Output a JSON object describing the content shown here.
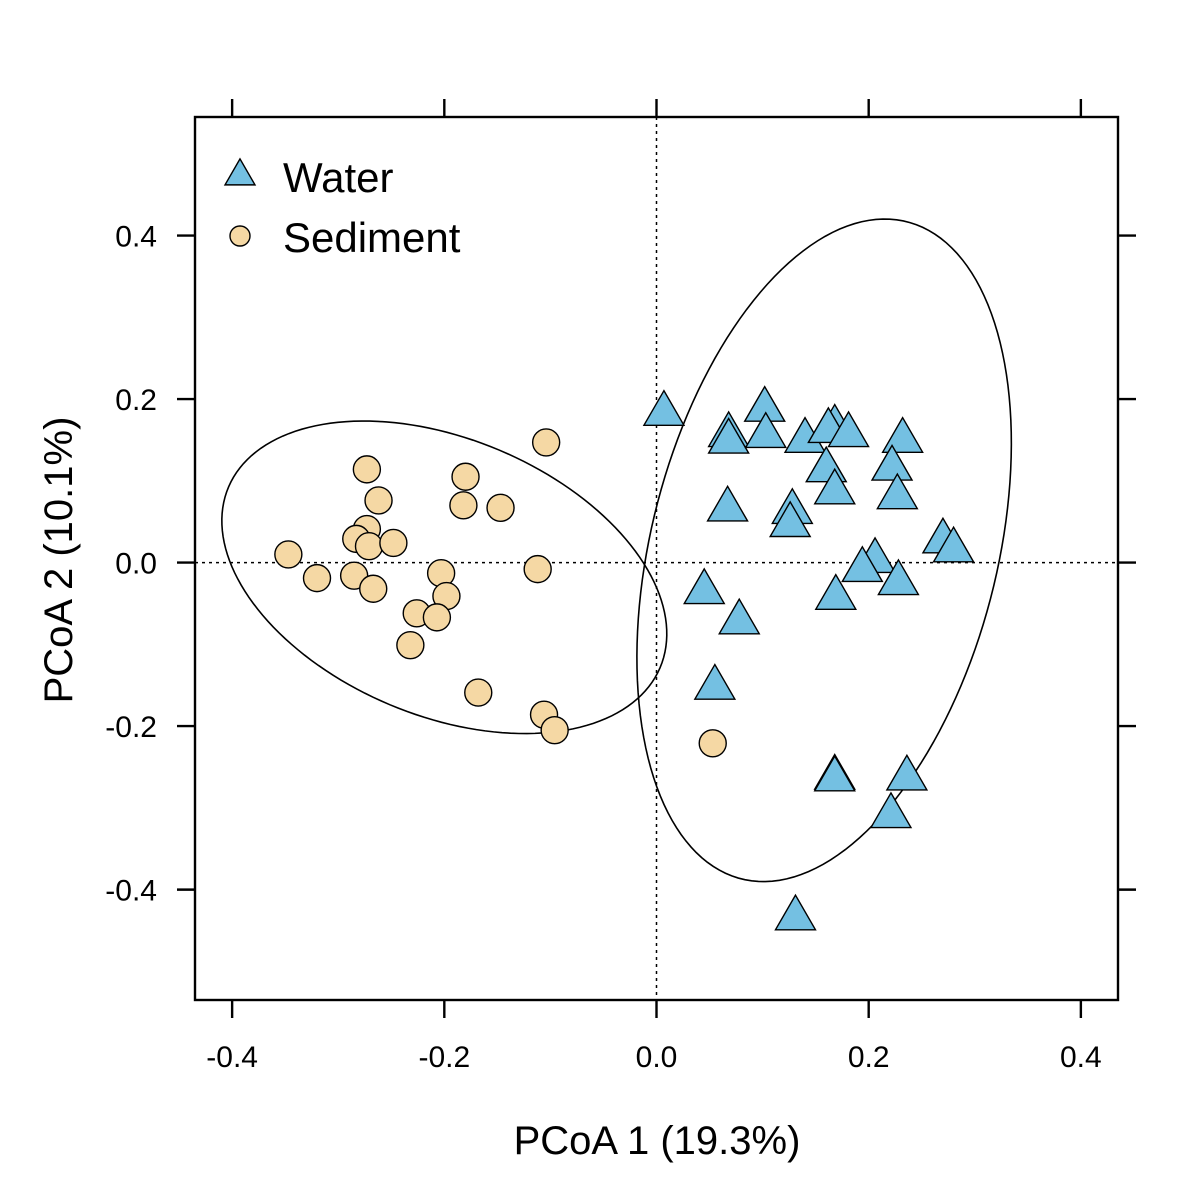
{
  "chart_data": {
    "type": "scatter",
    "xlabel": "PCoA 1 (19.3%)",
    "ylabel": "PCoA 2 (10.1%)",
    "xlim": [
      -0.435,
      0.435
    ],
    "ylim": [
      -0.535,
      0.545
    ],
    "xticks": [
      {
        "value": -0.4,
        "label": "-0.4"
      },
      {
        "value": -0.2,
        "label": "-0.2"
      },
      {
        "value": 0.0,
        "label": "0.0"
      },
      {
        "value": 0.2,
        "label": "0.2"
      },
      {
        "value": 0.4,
        "label": "0.4"
      }
    ],
    "yticks": [
      {
        "value": 0.4,
        "label": "0.4"
      },
      {
        "value": 0.2,
        "label": "0.2"
      },
      {
        "value": 0.0,
        "label": "0.0"
      },
      {
        "value": -0.2,
        "label": "-0.2"
      },
      {
        "value": -0.4,
        "label": "-0.4"
      }
    ],
    "reference_lines": {
      "x": 0,
      "y": 0,
      "style": "dotted"
    },
    "grid": false,
    "legend": {
      "position": "top-left"
    },
    "series": [
      {
        "name": "Water",
        "marker": "triangle",
        "color": "#74c0e2",
        "points": [
          [
            0.007,
            0.184
          ],
          [
            0.068,
            0.158
          ],
          [
            0.068,
            0.15
          ],
          [
            0.102,
            0.189
          ],
          [
            0.103,
            0.157
          ],
          [
            0.14,
            0.151
          ],
          [
            0.168,
            0.167
          ],
          [
            0.162,
            0.163
          ],
          [
            0.181,
            0.158
          ],
          [
            0.232,
            0.151
          ],
          [
            0.16,
            0.115
          ],
          [
            0.222,
            0.117
          ],
          [
            0.168,
            0.088
          ],
          [
            0.227,
            0.082
          ],
          [
            0.067,
            0.067
          ],
          [
            0.128,
            0.064
          ],
          [
            0.126,
            0.048
          ],
          [
            0.27,
            0.028
          ],
          [
            0.28,
            0.017
          ],
          [
            0.206,
            0.004
          ],
          [
            0.194,
            -0.007
          ],
          [
            0.228,
            -0.023
          ],
          [
            0.045,
            -0.034
          ],
          [
            0.169,
            -0.041
          ],
          [
            0.078,
            -0.071
          ],
          [
            0.055,
            -0.151
          ],
          [
            0.168,
            -0.261
          ],
          [
            0.168,
            -0.263
          ],
          [
            0.236,
            -0.262
          ],
          [
            0.221,
            -0.308
          ],
          [
            0.131,
            -0.433
          ]
        ]
      },
      {
        "name": "Sediment",
        "marker": "circle",
        "color": "#f5d8a4",
        "points": [
          [
            -0.104,
            0.147
          ],
          [
            -0.273,
            0.114
          ],
          [
            -0.18,
            0.105
          ],
          [
            -0.262,
            0.076
          ],
          [
            -0.182,
            0.07
          ],
          [
            -0.147,
            0.067
          ],
          [
            -0.273,
            0.041
          ],
          [
            -0.283,
            0.029
          ],
          [
            -0.271,
            0.02
          ],
          [
            -0.248,
            0.024
          ],
          [
            -0.347,
            0.01
          ],
          [
            -0.32,
            -0.019
          ],
          [
            -0.285,
            -0.016
          ],
          [
            -0.267,
            -0.032
          ],
          [
            -0.112,
            -0.008
          ],
          [
            -0.203,
            -0.013
          ],
          [
            -0.198,
            -0.041
          ],
          [
            -0.226,
            -0.062
          ],
          [
            -0.207,
            -0.067
          ],
          [
            -0.232,
            -0.101
          ],
          [
            -0.168,
            -0.159
          ],
          [
            -0.106,
            -0.186
          ],
          [
            -0.096,
            -0.205
          ],
          [
            0.053,
            -0.221
          ]
        ]
      }
    ],
    "ellipses": [
      {
        "series": "Water",
        "center": [
          0.158,
          0.015
        ],
        "semi_major": 0.41,
        "semi_minor": 0.165,
        "angle_deg": 80.4
      },
      {
        "series": "Sediment",
        "center": [
          -0.2,
          -0.018
        ],
        "semi_major": 0.235,
        "semi_minor": 0.159,
        "angle_deg": -37.8
      }
    ]
  }
}
